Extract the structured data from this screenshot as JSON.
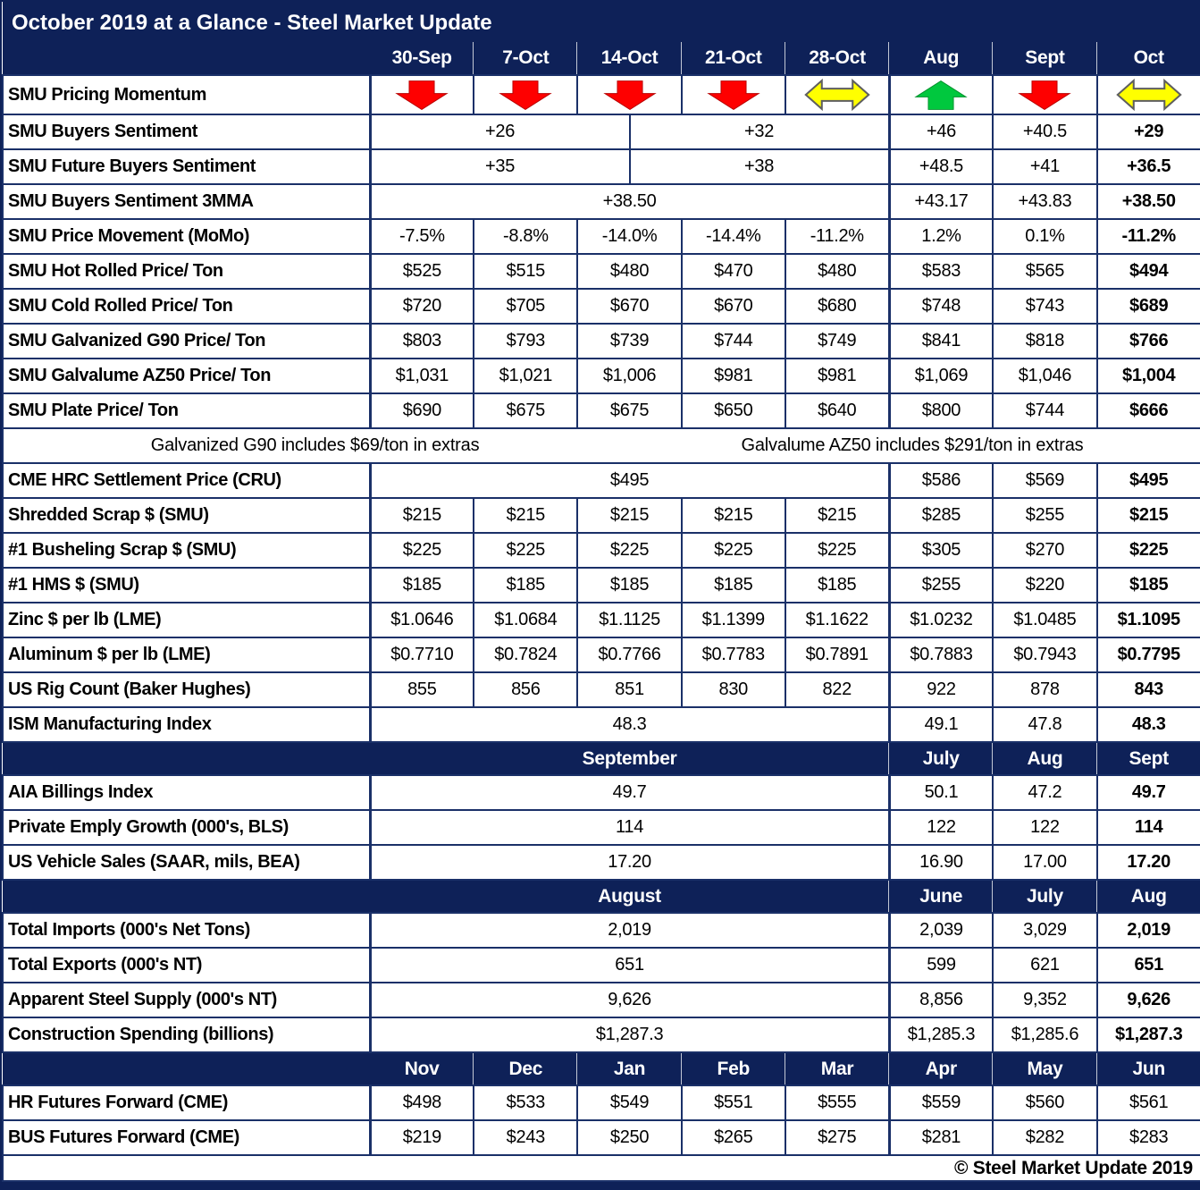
{
  "title": "October 2019 at a Glance - Steel Market Update",
  "footer": "© Steel Market Update 2019",
  "colors": {
    "navy": "#0e2158",
    "grid_line": "#1a3068",
    "momentum_down_red": "#fe0000",
    "momentum_up_green": "#00c83e",
    "momentum_sideways_yellow": "#ffff00",
    "header_text": "#ffffff",
    "body_text": "#000000"
  },
  "notes": {
    "galvanized": "Galvanized G90 includes $69/ton in extras",
    "galvalume": "Galvalume AZ50 includes $291/ton in extras"
  },
  "table": {
    "rows": [
      {
        "kind": "title",
        "name": "title-row"
      },
      {
        "kind": "columns",
        "name": "column-header-row",
        "label": "",
        "cells": [
          {
            "t": "30-Sep"
          },
          {
            "t": "7-Oct"
          },
          {
            "t": "14-Oct"
          },
          {
            "t": "21-Oct"
          },
          {
            "t": "28-Oct"
          },
          {
            "t": "Aug"
          },
          {
            "t": "Sept"
          },
          {
            "t": "Oct"
          }
        ]
      },
      {
        "kind": "data",
        "name": "row-smu-pricing-momentum",
        "label": "SMU Pricing Momentum",
        "cells": [
          {
            "icon": "down"
          },
          {
            "icon": "down"
          },
          {
            "icon": "down"
          },
          {
            "icon": "down"
          },
          {
            "icon": "sideways"
          },
          {
            "icon": "up"
          },
          {
            "icon": "down"
          },
          {
            "icon": "sideways"
          }
        ]
      },
      {
        "kind": "data",
        "name": "row-smu-buyers-sentiment",
        "label": "SMU Buyers Sentiment",
        "cells": [
          {
            "t": "+26",
            "s": 5
          },
          {
            "t": "+32",
            "s": 5
          },
          {
            "t": "+46"
          },
          {
            "t": "+40.5"
          },
          {
            "t": "+29",
            "b": true
          }
        ]
      },
      {
        "kind": "data",
        "name": "row-smu-future-buyers-sentiment",
        "label": "SMU Future Buyers Sentiment",
        "cells": [
          {
            "t": "+35",
            "s": 5
          },
          {
            "t": "+38",
            "s": 5
          },
          {
            "t": "+48.5"
          },
          {
            "t": "+41"
          },
          {
            "t": "+36.5",
            "b": true
          }
        ]
      },
      {
        "kind": "data",
        "name": "row-smu-buyers-sentiment-3mma",
        "label": "SMU Buyers Sentiment 3MMA",
        "cells": [
          {
            "t": "+38.50",
            "s": 10
          },
          {
            "t": "+43.17"
          },
          {
            "t": "+43.83"
          },
          {
            "t": "+38.50",
            "b": true
          }
        ]
      },
      {
        "kind": "data",
        "name": "row-smu-price-movement-momo",
        "label": "SMU Price Movement (MoMo)",
        "cells": [
          {
            "t": "-7.5%"
          },
          {
            "t": "-8.8%"
          },
          {
            "t": "-14.0%"
          },
          {
            "t": "-14.4%"
          },
          {
            "t": "-11.2%"
          },
          {
            "t": "1.2%"
          },
          {
            "t": "0.1%"
          },
          {
            "t": "-11.2%",
            "b": true
          }
        ]
      },
      {
        "kind": "data",
        "name": "row-smu-hot-rolled-price",
        "label": "SMU Hot Rolled Price/ Ton",
        "cells": [
          {
            "t": "$525"
          },
          {
            "t": "$515"
          },
          {
            "t": "$480"
          },
          {
            "t": "$470"
          },
          {
            "t": "$480"
          },
          {
            "t": "$583"
          },
          {
            "t": "$565"
          },
          {
            "t": "$494",
            "b": true
          }
        ]
      },
      {
        "kind": "data",
        "name": "row-smu-cold-rolled-price",
        "label": "SMU Cold Rolled Price/ Ton",
        "cells": [
          {
            "t": "$720"
          },
          {
            "t": "$705"
          },
          {
            "t": "$670"
          },
          {
            "t": "$670"
          },
          {
            "t": "$680"
          },
          {
            "t": "$748"
          },
          {
            "t": "$743"
          },
          {
            "t": "$689",
            "b": true
          }
        ]
      },
      {
        "kind": "data",
        "name": "row-smu-galvanized-g90-price",
        "label": "SMU Galvanized G90 Price/ Ton",
        "cells": [
          {
            "t": "$803"
          },
          {
            "t": "$793"
          },
          {
            "t": "$739"
          },
          {
            "t": "$744"
          },
          {
            "t": "$749"
          },
          {
            "t": "$841"
          },
          {
            "t": "$818"
          },
          {
            "t": "$766",
            "b": true
          }
        ]
      },
      {
        "kind": "data",
        "name": "row-smu-galvalume-az50-price",
        "label": "SMU Galvalume AZ50 Price/ Ton",
        "cells": [
          {
            "t": "$1,031"
          },
          {
            "t": "$1,021"
          },
          {
            "t": "$1,006"
          },
          {
            "t": "$981"
          },
          {
            "t": "$981"
          },
          {
            "t": "$1,069"
          },
          {
            "t": "$1,046"
          },
          {
            "t": "$1,004",
            "b": true
          }
        ]
      },
      {
        "kind": "data",
        "name": "row-smu-plate-price",
        "label": "SMU Plate Price/ Ton",
        "cells": [
          {
            "t": "$690"
          },
          {
            "t": "$675"
          },
          {
            "t": "$675"
          },
          {
            "t": "$650"
          },
          {
            "t": "$640"
          },
          {
            "t": "$800"
          },
          {
            "t": "$744"
          },
          {
            "t": "$666",
            "b": true
          }
        ]
      },
      {
        "kind": "note",
        "name": "row-extras-note"
      },
      {
        "kind": "data",
        "name": "row-cme-hrc-settlement-price",
        "label": "CME HRC Settlement Price (CRU)",
        "cells": [
          {
            "t": "$495",
            "s": 10
          },
          {
            "t": "$586"
          },
          {
            "t": "$569"
          },
          {
            "t": "$495",
            "b": true
          }
        ]
      },
      {
        "kind": "data",
        "name": "row-shredded-scrap",
        "label": "Shredded Scrap $ (SMU)",
        "cells": [
          {
            "t": "$215"
          },
          {
            "t": "$215"
          },
          {
            "t": "$215"
          },
          {
            "t": "$215"
          },
          {
            "t": "$215"
          },
          {
            "t": "$285"
          },
          {
            "t": "$255"
          },
          {
            "t": "$215",
            "b": true
          }
        ]
      },
      {
        "kind": "data",
        "name": "row-busheling-scrap",
        "label": "#1 Busheling Scrap $ (SMU)",
        "cells": [
          {
            "t": "$225"
          },
          {
            "t": "$225"
          },
          {
            "t": "$225"
          },
          {
            "t": "$225"
          },
          {
            "t": "$225"
          },
          {
            "t": "$305"
          },
          {
            "t": "$270"
          },
          {
            "t": "$225",
            "b": true
          }
        ]
      },
      {
        "kind": "data",
        "name": "row-hms",
        "label": "#1 HMS $ (SMU)",
        "cells": [
          {
            "t": "$185"
          },
          {
            "t": "$185"
          },
          {
            "t": "$185"
          },
          {
            "t": "$185"
          },
          {
            "t": "$185"
          },
          {
            "t": "$255"
          },
          {
            "t": "$220"
          },
          {
            "t": "$185",
            "b": true
          }
        ]
      },
      {
        "kind": "data",
        "name": "row-zinc-per-lb",
        "label": "Zinc $ per lb (LME)",
        "cells": [
          {
            "t": "$1.0646"
          },
          {
            "t": "$1.0684"
          },
          {
            "t": "$1.1125"
          },
          {
            "t": "$1.1399"
          },
          {
            "t": "$1.1622"
          },
          {
            "t": "$1.0232"
          },
          {
            "t": "$1.0485"
          },
          {
            "t": "$1.1095",
            "b": true
          }
        ]
      },
      {
        "kind": "data",
        "name": "row-aluminum-per-lb",
        "label": "Aluminum $ per lb (LME)",
        "cells": [
          {
            "t": "$0.7710"
          },
          {
            "t": "$0.7824"
          },
          {
            "t": "$0.7766"
          },
          {
            "t": "$0.7783"
          },
          {
            "t": "$0.7891"
          },
          {
            "t": "$0.7883"
          },
          {
            "t": "$0.7943"
          },
          {
            "t": "$0.7795",
            "b": true
          }
        ]
      },
      {
        "kind": "data",
        "name": "row-us-rig-count",
        "label": "US Rig Count (Baker Hughes)",
        "cells": [
          {
            "t": "855"
          },
          {
            "t": "856"
          },
          {
            "t": "851"
          },
          {
            "t": "830"
          },
          {
            "t": "822"
          },
          {
            "t": "922"
          },
          {
            "t": "878"
          },
          {
            "t": "843",
            "b": true
          }
        ]
      },
      {
        "kind": "data",
        "name": "row-ism-manufacturing-index",
        "label": "ISM Manufacturing Index",
        "cells": [
          {
            "t": "48.3",
            "s": 10
          },
          {
            "t": "49.1"
          },
          {
            "t": "47.8"
          },
          {
            "t": "48.3",
            "b": true
          }
        ]
      },
      {
        "kind": "section",
        "name": "section-header-september",
        "label": "",
        "cells": [
          {
            "t": "September",
            "s": 10
          },
          {
            "t": "July"
          },
          {
            "t": "Aug"
          },
          {
            "t": "Sept"
          }
        ]
      },
      {
        "kind": "data",
        "name": "row-aia-billings-index",
        "label": "AIA Billings Index",
        "cells": [
          {
            "t": "49.7",
            "s": 10
          },
          {
            "t": "50.1"
          },
          {
            "t": "47.2"
          },
          {
            "t": "49.7",
            "b": true
          }
        ]
      },
      {
        "kind": "data",
        "name": "row-private-emply-growth",
        "label": "Private Emply Growth (000's, BLS)",
        "cells": [
          {
            "t": "114",
            "s": 10
          },
          {
            "t": "122"
          },
          {
            "t": "122"
          },
          {
            "t": "114",
            "b": true
          }
        ]
      },
      {
        "kind": "data",
        "name": "row-us-vehicle-sales",
        "label": "US Vehicle Sales (SAAR, mils, BEA)",
        "cells": [
          {
            "t": "17.20",
            "s": 10
          },
          {
            "t": "16.90"
          },
          {
            "t": "17.00"
          },
          {
            "t": "17.20",
            "b": true
          }
        ]
      },
      {
        "kind": "section",
        "name": "section-header-august",
        "label": "",
        "cells": [
          {
            "t": "August",
            "s": 10
          },
          {
            "t": "June"
          },
          {
            "t": "July"
          },
          {
            "t": "Aug"
          }
        ]
      },
      {
        "kind": "data",
        "name": "row-total-imports",
        "label": "Total Imports (000's Net Tons)",
        "cells": [
          {
            "t": "2,019",
            "s": 10
          },
          {
            "t": "2,039"
          },
          {
            "t": "3,029"
          },
          {
            "t": "2,019",
            "b": true
          }
        ]
      },
      {
        "kind": "data",
        "name": "row-total-exports",
        "label": "Total Exports (000's NT)",
        "cells": [
          {
            "t": "651",
            "s": 10
          },
          {
            "t": "599"
          },
          {
            "t": "621"
          },
          {
            "t": "651",
            "b": true
          }
        ]
      },
      {
        "kind": "data",
        "name": "row-apparent-steel-supply",
        "label": "Apparent Steel Supply (000's NT)",
        "cells": [
          {
            "t": "9,626",
            "s": 10
          },
          {
            "t": "8,856"
          },
          {
            "t": "9,352"
          },
          {
            "t": "9,626",
            "b": true
          }
        ]
      },
      {
        "kind": "data",
        "name": "row-construction-spending",
        "label": "Construction Spending (billions)",
        "cells": [
          {
            "t": "$1,287.3",
            "s": 10
          },
          {
            "t": "$1,285.3"
          },
          {
            "t": "$1,285.6"
          },
          {
            "t": "$1,287.3",
            "b": true
          }
        ]
      },
      {
        "kind": "section",
        "name": "section-header-futures-months",
        "label": "",
        "cells": [
          {
            "t": "Nov"
          },
          {
            "t": "Dec"
          },
          {
            "t": "Jan"
          },
          {
            "t": "Feb"
          },
          {
            "t": "Mar"
          },
          {
            "t": "Apr"
          },
          {
            "t": "May"
          },
          {
            "t": "Jun"
          }
        ]
      },
      {
        "kind": "data",
        "name": "row-hr-futures-forward",
        "label": "HR Futures Forward (CME)",
        "cells": [
          {
            "t": "$498"
          },
          {
            "t": "$533"
          },
          {
            "t": "$549"
          },
          {
            "t": "$551"
          },
          {
            "t": "$555"
          },
          {
            "t": "$559"
          },
          {
            "t": "$560"
          },
          {
            "t": "$561"
          }
        ]
      },
      {
        "kind": "data",
        "name": "row-bus-futures-forward",
        "label": "BUS Futures Forward (CME)",
        "cells": [
          {
            "t": "$219"
          },
          {
            "t": "$243"
          },
          {
            "t": "$250"
          },
          {
            "t": "$265"
          },
          {
            "t": "$275"
          },
          {
            "t": "$281"
          },
          {
            "t": "$282"
          },
          {
            "t": "$283"
          }
        ]
      },
      {
        "kind": "footer",
        "name": "footer-row"
      }
    ]
  }
}
